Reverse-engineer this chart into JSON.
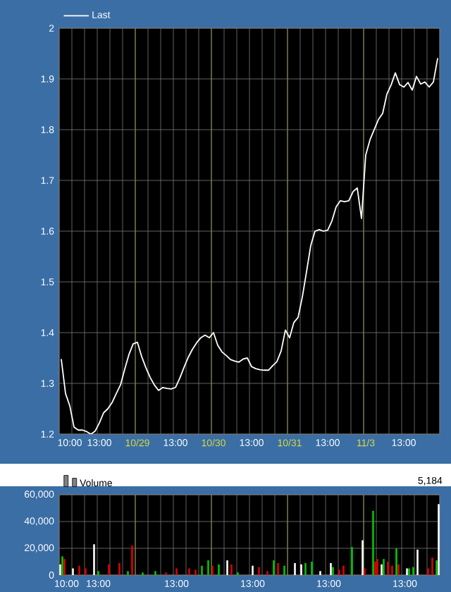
{
  "chart_data": [
    {
      "type": "line",
      "legend": "top left",
      "grid": true,
      "ylim": [
        1.2,
        2
      ],
      "yticks": [
        1.2,
        1.3,
        1.4,
        1.5,
        1.6,
        1.7,
        1.8,
        1.9,
        2
      ],
      "categories": [
        null,
        null,
        "10:00",
        null,
        null,
        null,
        null,
        null,
        null,
        "13:00",
        null,
        null,
        null,
        null,
        null,
        null,
        null,
        null,
        "10/29",
        null,
        null,
        null,
        null,
        null,
        null,
        null,
        null,
        "13:00",
        null,
        null,
        null,
        null,
        null,
        null,
        null,
        null,
        "10/30",
        null,
        null,
        null,
        null,
        null,
        null,
        null,
        null,
        "13:00",
        null,
        null,
        null,
        null,
        null,
        null,
        null,
        null,
        "10/31",
        null,
        null,
        null,
        null,
        null,
        null,
        null,
        null,
        "13:00",
        null,
        null,
        null,
        null,
        null,
        null,
        null,
        null,
        "11/3",
        null,
        null,
        null,
        null,
        null,
        null,
        null,
        null,
        "13:00",
        null,
        null,
        null,
        null,
        null,
        null,
        null,
        null
      ],
      "series": [
        {
          "name": "Last",
          "color": "#ffffff",
          "values": [
            1.347,
            1.28,
            1.256,
            1.214,
            1.208,
            1.208,
            1.205,
            1.2,
            1.206,
            1.222,
            1.242,
            1.25,
            1.262,
            1.28,
            1.297,
            1.328,
            1.357,
            1.378,
            1.381,
            1.353,
            1.331,
            1.312,
            1.297,
            1.286,
            1.292,
            1.29,
            1.289,
            1.292,
            1.31,
            1.331,
            1.351,
            1.367,
            1.38,
            1.39,
            1.395,
            1.39,
            1.4,
            1.375,
            1.362,
            1.355,
            1.347,
            1.344,
            1.342,
            1.348,
            1.35,
            1.333,
            1.329,
            1.327,
            1.326,
            1.326,
            1.335,
            1.343,
            1.364,
            1.405,
            1.39,
            1.42,
            1.43,
            1.47,
            1.52,
            1.572,
            1.6,
            1.603,
            1.6,
            1.602,
            1.62,
            1.648,
            1.66,
            1.658,
            1.66,
            1.678,
            1.685,
            1.625,
            1.75,
            1.78,
            1.8,
            1.82,
            1.832,
            1.87,
            1.888,
            1.912,
            1.889,
            1.884,
            1.893,
            1.878,
            1.905,
            1.89,
            1.894,
            1.884,
            1.894,
            1.94
          ]
        }
      ]
    },
    {
      "type": "bar",
      "legend": "top left",
      "grid": true,
      "ylim": [
        0,
        60000
      ],
      "yticks": [
        0,
        {
          "value": 20000,
          "label": "20,000"
        },
        {
          "value": 40000,
          "label": "40,000"
        },
        {
          "value": 60000,
          "label": "60,000"
        }
      ],
      "annotations": [
        "5,184"
      ],
      "categories": [
        null,
        null,
        null,
        "10:00",
        null,
        null,
        null,
        null,
        null,
        null,
        null,
        null,
        null,
        null,
        null,
        null,
        null,
        null,
        "13:00",
        null,
        null,
        null,
        null,
        null,
        null,
        null,
        null,
        null,
        null,
        null,
        null,
        null,
        null,
        null,
        null,
        null,
        null,
        null,
        null,
        null,
        null,
        null,
        null,
        null,
        null,
        null,
        null,
        null,
        null,
        null,
        null,
        null,
        null,
        null,
        null,
        "13:00",
        null,
        null,
        null,
        null,
        null,
        null,
        null,
        null,
        null,
        null,
        null,
        null,
        null,
        null,
        null,
        null,
        null,
        null,
        null,
        null,
        null,
        null,
        null,
        null,
        null,
        null,
        null,
        null,
        null,
        null,
        null,
        null,
        null,
        null,
        null,
        "13:00",
        null,
        null,
        null,
        null,
        null,
        null,
        null,
        null,
        null,
        null,
        null,
        null,
        null,
        null,
        null,
        null,
        null,
        null,
        null,
        null,
        null,
        null,
        null,
        null,
        null,
        null,
        null,
        null,
        null,
        null,
        null,
        null,
        null,
        null,
        null,
        "13:00",
        null,
        null,
        null,
        null,
        null,
        null,
        null,
        null,
        null,
        null,
        null,
        null,
        null,
        null,
        null,
        null,
        null,
        null,
        null,
        null,
        null,
        null,
        null,
        null,
        null,
        null,
        null,
        null,
        null,
        null,
        null,
        null,
        null,
        null,
        null,
        "13:00",
        null,
        null,
        null,
        null,
        null,
        null,
        null,
        null,
        null,
        null,
        null,
        null,
        null,
        null,
        null,
        null
      ],
      "series": [
        {
          "name": "Volume",
          "values": [
            8000,
            14000,
            12000,
            null,
            null,
            null,
            5000,
            null,
            null,
            7000,
            null,
            null,
            5000,
            null,
            null,
            null,
            23000,
            null,
            3000,
            null,
            null,
            null,
            null,
            8000,
            null,
            null,
            null,
            null,
            9000,
            null,
            null,
            null,
            3000,
            null,
            22000,
            null,
            null,
            null,
            null,
            2000,
            null,
            null,
            null,
            null,
            null,
            3000,
            null,
            null,
            null,
            null,
            2000,
            null,
            null,
            null,
            null,
            5000,
            null,
            null,
            null,
            null,
            null,
            5000,
            null,
            null,
            4000,
            null,
            null,
            7000,
            null,
            null,
            11000,
            null,
            7000,
            null,
            null,
            8000,
            null,
            null,
            null,
            11000,
            null,
            8000,
            null,
            null,
            2000,
            null,
            null,
            null,
            null,
            null,
            null,
            7000,
            null,
            null,
            6000,
            null,
            null,
            null,
            3000,
            null,
            null,
            11000,
            null,
            9000,
            null,
            null,
            7000,
            null,
            null,
            null,
            null,
            9000,
            null,
            null,
            8000,
            null,
            9000,
            null,
            null,
            10000,
            null,
            null,
            null,
            3000,
            null,
            null,
            null,
            null,
            9000,
            6000,
            null,
            null,
            4000,
            null,
            7000,
            null,
            null,
            null,
            21000,
            null,
            null,
            null,
            null,
            26000,
            5000,
            null,
            null,
            null,
            48000,
            10000,
            12000,
            null,
            8000,
            12000,
            null,
            10000,
            null,
            7000,
            null,
            20000,
            8000,
            null,
            null,
            null,
            5000,
            5000,
            null,
            6000,
            null,
            19000,
            null,
            null,
            null,
            null,
            5000,
            null,
            13000,
            null,
            11000,
            53000
          ],
          "colors": [
            "#ffffff",
            "#00c800",
            "#e00000",
            null,
            null,
            null,
            "#ffffff",
            null,
            null,
            "#e00000",
            null,
            null,
            "#e00000",
            null,
            null,
            null,
            "#ffffff",
            null,
            "#00c800",
            null,
            null,
            null,
            null,
            "#e00000",
            null,
            null,
            null,
            null,
            "#e00000",
            null,
            null,
            null,
            "#00c800",
            null,
            "#e00000",
            null,
            null,
            null,
            null,
            "#00c800",
            null,
            null,
            null,
            null,
            null,
            "#00c800",
            null,
            null,
            null,
            null,
            "#e00000",
            null,
            null,
            null,
            null,
            "#e00000",
            null,
            null,
            null,
            null,
            null,
            "#e00000",
            null,
            null,
            "#e00000",
            null,
            null,
            "#00c800",
            null,
            null,
            "#00c800",
            null,
            "#e00000",
            null,
            null,
            "#00c800",
            null,
            null,
            null,
            "#ffffff",
            null,
            "#e00000",
            null,
            null,
            "#00c800",
            null,
            null,
            null,
            null,
            null,
            null,
            "#ffffff",
            null,
            null,
            "#e00000",
            null,
            null,
            null,
            "#e00000",
            null,
            null,
            "#00c800",
            null,
            "#e00000",
            null,
            null,
            "#00c800",
            null,
            null,
            null,
            null,
            "#ffffff",
            null,
            null,
            "#ffffff",
            null,
            "#00c800",
            null,
            null,
            "#00c800",
            null,
            null,
            null,
            "#ffffff",
            null,
            null,
            null,
            null,
            "#ffffff",
            "#00c800",
            null,
            null,
            "#e00000",
            null,
            "#e00000",
            null,
            null,
            null,
            "#00c800",
            null,
            null,
            null,
            null,
            "#ffffff",
            "#e00000",
            null,
            null,
            null,
            "#00c800",
            "#e00000",
            "#e00000",
            null,
            "#ffffff",
            "#00c800",
            null,
            "#e00000",
            null,
            "#e00000",
            null,
            "#00c800",
            "#e00000",
            null,
            null,
            null,
            "#ffffff",
            "#00c800",
            null,
            "#00c800",
            null,
            "#ffffff",
            null,
            null,
            null,
            null,
            "#e00000",
            null,
            "#e00000",
            null,
            "#00c800",
            "#ffffff"
          ]
        }
      ]
    }
  ]
}
